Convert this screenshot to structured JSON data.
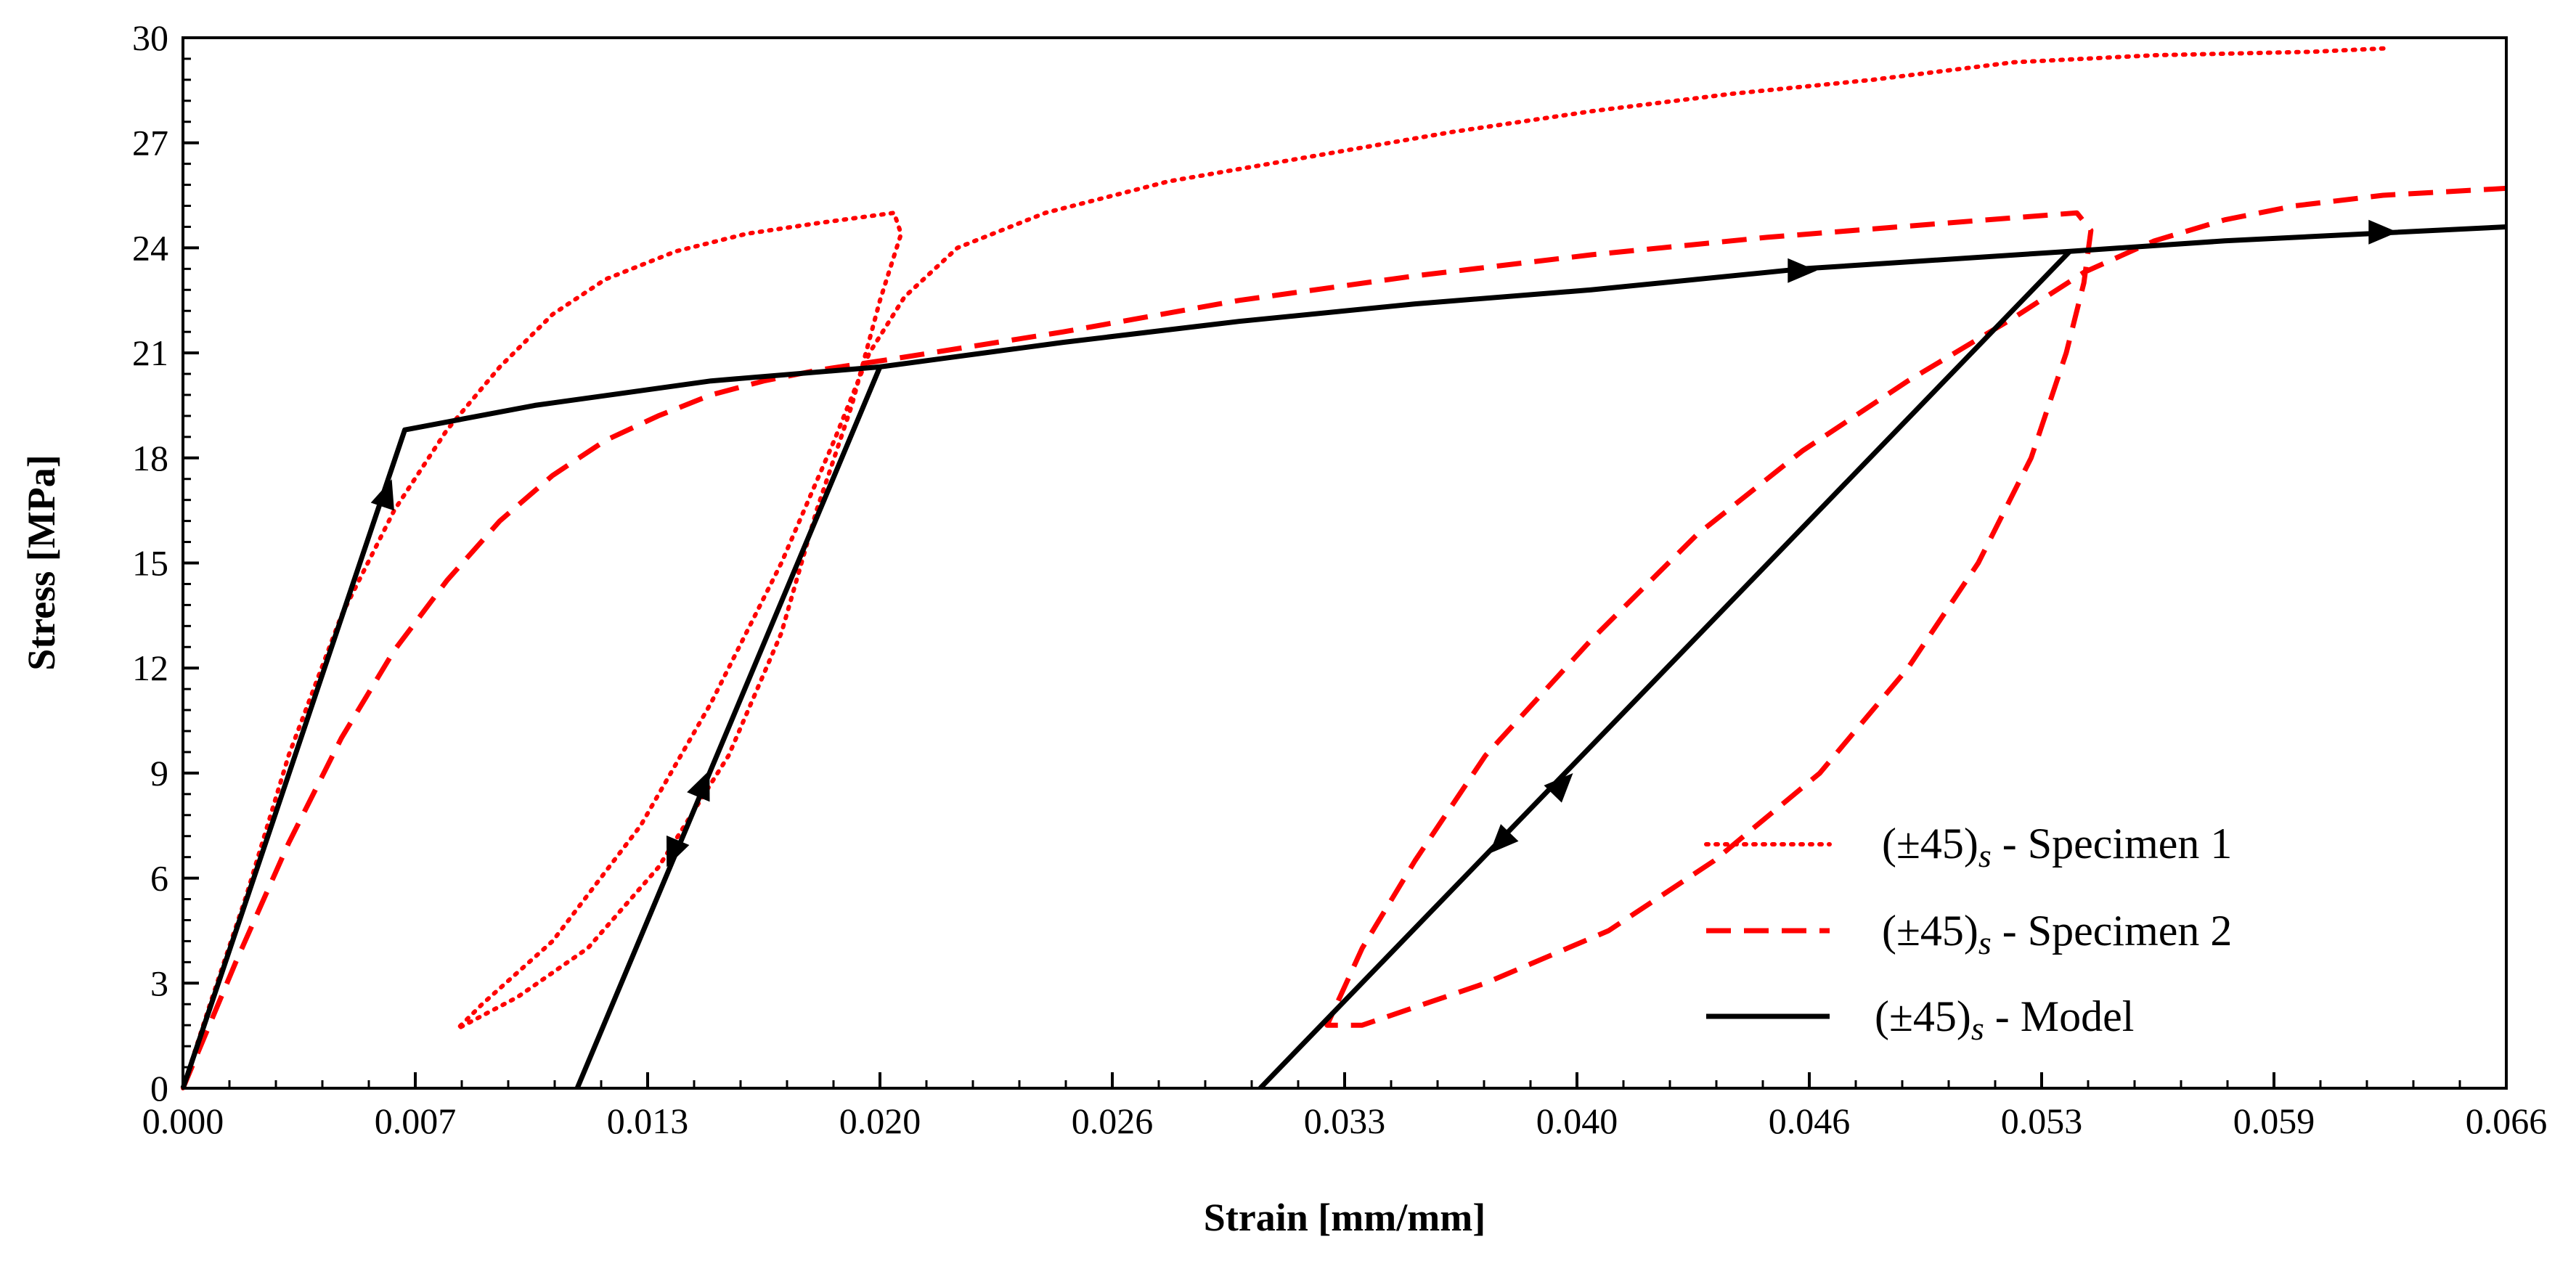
{
  "chart_data": {
    "type": "line",
    "xlabel": "Strain [mm/mm]",
    "ylabel": "Stress [MPa]",
    "xlim": [
      0,
      0.066
    ],
    "ylim": [
      0,
      30
    ],
    "x_ticks": [
      0,
      0.0066,
      0.0132,
      0.0198,
      0.0264,
      0.033,
      0.0396,
      0.0462,
      0.0528,
      0.0594,
      0.066
    ],
    "x_tick_labels": [
      "0.000",
      "0.007",
      "0.013",
      "0.020",
      "0.026",
      "0.033",
      "0.040",
      "0.046",
      "0.053",
      "0.059",
      "0.066"
    ],
    "y_ticks": [
      0,
      3,
      6,
      9,
      12,
      15,
      18,
      21,
      24,
      27,
      30
    ],
    "y_tick_labels": [
      "0",
      "3",
      "6",
      "9",
      "12",
      "15",
      "18",
      "21",
      "24",
      "27",
      "30"
    ],
    "legend_position": "bottom-right",
    "series": [
      {
        "name": "Specimen 1",
        "legend_prefix": "(±45)",
        "legend_sub": "s",
        "legend_suffix": " - Specimen 1",
        "style": "dotted",
        "color": "#ff0000",
        "points": [
          [
            0,
            0
          ],
          [
            0.0008,
            2.5
          ],
          [
            0.0018,
            5.5
          ],
          [
            0.003,
            9.5
          ],
          [
            0.0045,
            13.5
          ],
          [
            0.006,
            16.5
          ],
          [
            0.0075,
            18.8
          ],
          [
            0.009,
            20.6
          ],
          [
            0.0105,
            22.1
          ],
          [
            0.012,
            23.1
          ],
          [
            0.014,
            23.9
          ],
          [
            0.016,
            24.4
          ],
          [
            0.018,
            24.7
          ],
          [
            0.0202,
            25.0
          ],
          [
            0.0204,
            24.4
          ],
          [
            0.0198,
            22.5
          ],
          [
            0.019,
            19.5
          ],
          [
            0.018,
            16.5
          ],
          [
            0.017,
            13.0
          ],
          [
            0.0155,
            9.5
          ],
          [
            0.0135,
            6.3
          ],
          [
            0.0115,
            4.0
          ],
          [
            0.0095,
            2.6
          ],
          [
            0.0078,
            1.7
          ],
          [
            0.0085,
            2.4
          ],
          [
            0.0105,
            4.2
          ],
          [
            0.013,
            7.5
          ],
          [
            0.015,
            11.0
          ],
          [
            0.017,
            15.0
          ],
          [
            0.0185,
            18.5
          ],
          [
            0.0195,
            21.0
          ],
          [
            0.0205,
            22.6
          ],
          [
            0.022,
            24.0
          ],
          [
            0.0245,
            25.0
          ],
          [
            0.028,
            25.9
          ],
          [
            0.032,
            26.6
          ],
          [
            0.036,
            27.3
          ],
          [
            0.04,
            27.9
          ],
          [
            0.044,
            28.4
          ],
          [
            0.048,
            28.8
          ],
          [
            0.052,
            29.3
          ],
          [
            0.056,
            29.5
          ],
          [
            0.0605,
            29.6
          ],
          [
            0.0626,
            29.7
          ]
        ]
      },
      {
        "name": "Specimen 2",
        "legend_prefix": "(±45)",
        "legend_sub": "s",
        "legend_suffix": " - Specimen 2",
        "style": "dashed",
        "color": "#ff0000",
        "points": [
          [
            0,
            0
          ],
          [
            0.0015,
            3.6
          ],
          [
            0.003,
            7.0
          ],
          [
            0.0045,
            10.0
          ],
          [
            0.006,
            12.5
          ],
          [
            0.0075,
            14.5
          ],
          [
            0.009,
            16.2
          ],
          [
            0.0105,
            17.5
          ],
          [
            0.012,
            18.5
          ],
          [
            0.0135,
            19.2
          ],
          [
            0.015,
            19.8
          ],
          [
            0.0165,
            20.2
          ],
          [
            0.018,
            20.5
          ],
          [
            0.02,
            20.8
          ],
          [
            0.025,
            21.6
          ],
          [
            0.03,
            22.5
          ],
          [
            0.035,
            23.2
          ],
          [
            0.04,
            23.8
          ],
          [
            0.045,
            24.3
          ],
          [
            0.05,
            24.7
          ],
          [
            0.0538,
            25.0
          ],
          [
            0.0542,
            24.5
          ],
          [
            0.054,
            23.0
          ],
          [
            0.0535,
            21.0
          ],
          [
            0.0525,
            18.0
          ],
          [
            0.051,
            15.0
          ],
          [
            0.049,
            12.0
          ],
          [
            0.0465,
            9.0
          ],
          [
            0.0435,
            6.5
          ],
          [
            0.0405,
            4.5
          ],
          [
            0.037,
            3.0
          ],
          [
            0.0335,
            1.8
          ],
          [
            0.0325,
            1.8
          ],
          [
            0.0335,
            4.0
          ],
          [
            0.035,
            6.5
          ],
          [
            0.037,
            9.5
          ],
          [
            0.04,
            12.8
          ],
          [
            0.043,
            15.8
          ],
          [
            0.046,
            18.2
          ],
          [
            0.049,
            20.2
          ],
          [
            0.052,
            22.0
          ],
          [
            0.054,
            23.3
          ],
          [
            0.056,
            24.2
          ],
          [
            0.058,
            24.8
          ],
          [
            0.06,
            25.2
          ],
          [
            0.0625,
            25.5
          ],
          [
            0.066,
            25.7
          ]
        ]
      },
      {
        "name": "Model",
        "legend_prefix": "(±45)",
        "legend_sub": "s",
        "legend_suffix": " - Model",
        "style": "solid",
        "color": "#000000",
        "points": [
          [
            0,
            0
          ],
          [
            0.0063,
            18.8
          ],
          [
            0.01,
            19.5
          ],
          [
            0.015,
            20.2
          ],
          [
            0.0198,
            20.6
          ],
          [
            0.025,
            21.3
          ],
          [
            0.03,
            21.9
          ],
          [
            0.035,
            22.4
          ],
          [
            0.04,
            22.8
          ],
          [
            0.046,
            23.4
          ],
          [
            0.0536,
            23.9
          ],
          [
            0.058,
            24.2
          ],
          [
            0.062,
            24.4
          ],
          [
            0.066,
            24.6
          ]
        ],
        "unload_reload": [
          [
            [
              0.0198,
              20.6
            ],
            [
              0.0112,
              0
            ]
          ],
          [
            [
              0.0536,
              23.9
            ],
            [
              0.0306,
              0
            ]
          ]
        ],
        "arrows": [
          {
            "x": 0.0058,
            "y": 17.0,
            "dir": "up"
          },
          {
            "x": 0.0148,
            "y": 8.7,
            "dir": "up"
          },
          {
            "x": 0.0139,
            "y": 6.7,
            "dir": "down"
          },
          {
            "x": 0.046,
            "y": 23.35,
            "dir": "right"
          },
          {
            "x": 0.0625,
            "y": 24.45,
            "dir": "right"
          },
          {
            "x": 0.0392,
            "y": 8.7,
            "dir": "up"
          },
          {
            "x": 0.0374,
            "y": 7.0,
            "dir": "down"
          }
        ]
      }
    ]
  }
}
